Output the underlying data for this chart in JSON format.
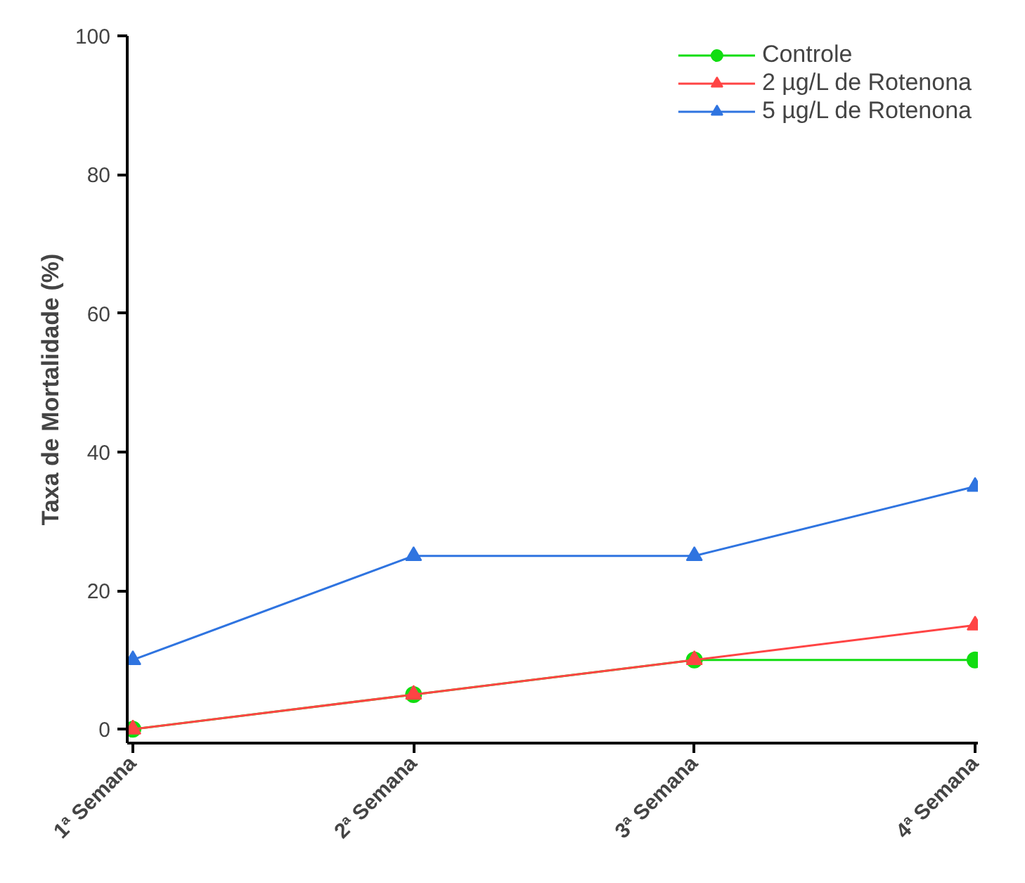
{
  "chart_data": {
    "type": "line",
    "ylabel": "Taxa de Mortalidade (%)",
    "categories": [
      "1ª Semana",
      "2ª Semana",
      "3ª Semana",
      "4ª Semana"
    ],
    "series": [
      {
        "name": "Controle",
        "color": "#11dd11",
        "marker": "circle",
        "values": [
          0,
          5,
          10,
          10
        ]
      },
      {
        "name": "2 µg/L de Rotenona",
        "color": "#ff4444",
        "marker": "triangle",
        "values": [
          0,
          5,
          10,
          15
        ]
      },
      {
        "name": "5 µg/L de Rotenona",
        "color": "#2f74e0",
        "marker": "triangle",
        "values": [
          10,
          25,
          25,
          35
        ]
      }
    ],
    "ylim": [
      -2,
      100
    ],
    "yticks": [
      0,
      20,
      40,
      60,
      80,
      100
    ],
    "grid": false,
    "legend": "top right",
    "line_style": "solid"
  }
}
